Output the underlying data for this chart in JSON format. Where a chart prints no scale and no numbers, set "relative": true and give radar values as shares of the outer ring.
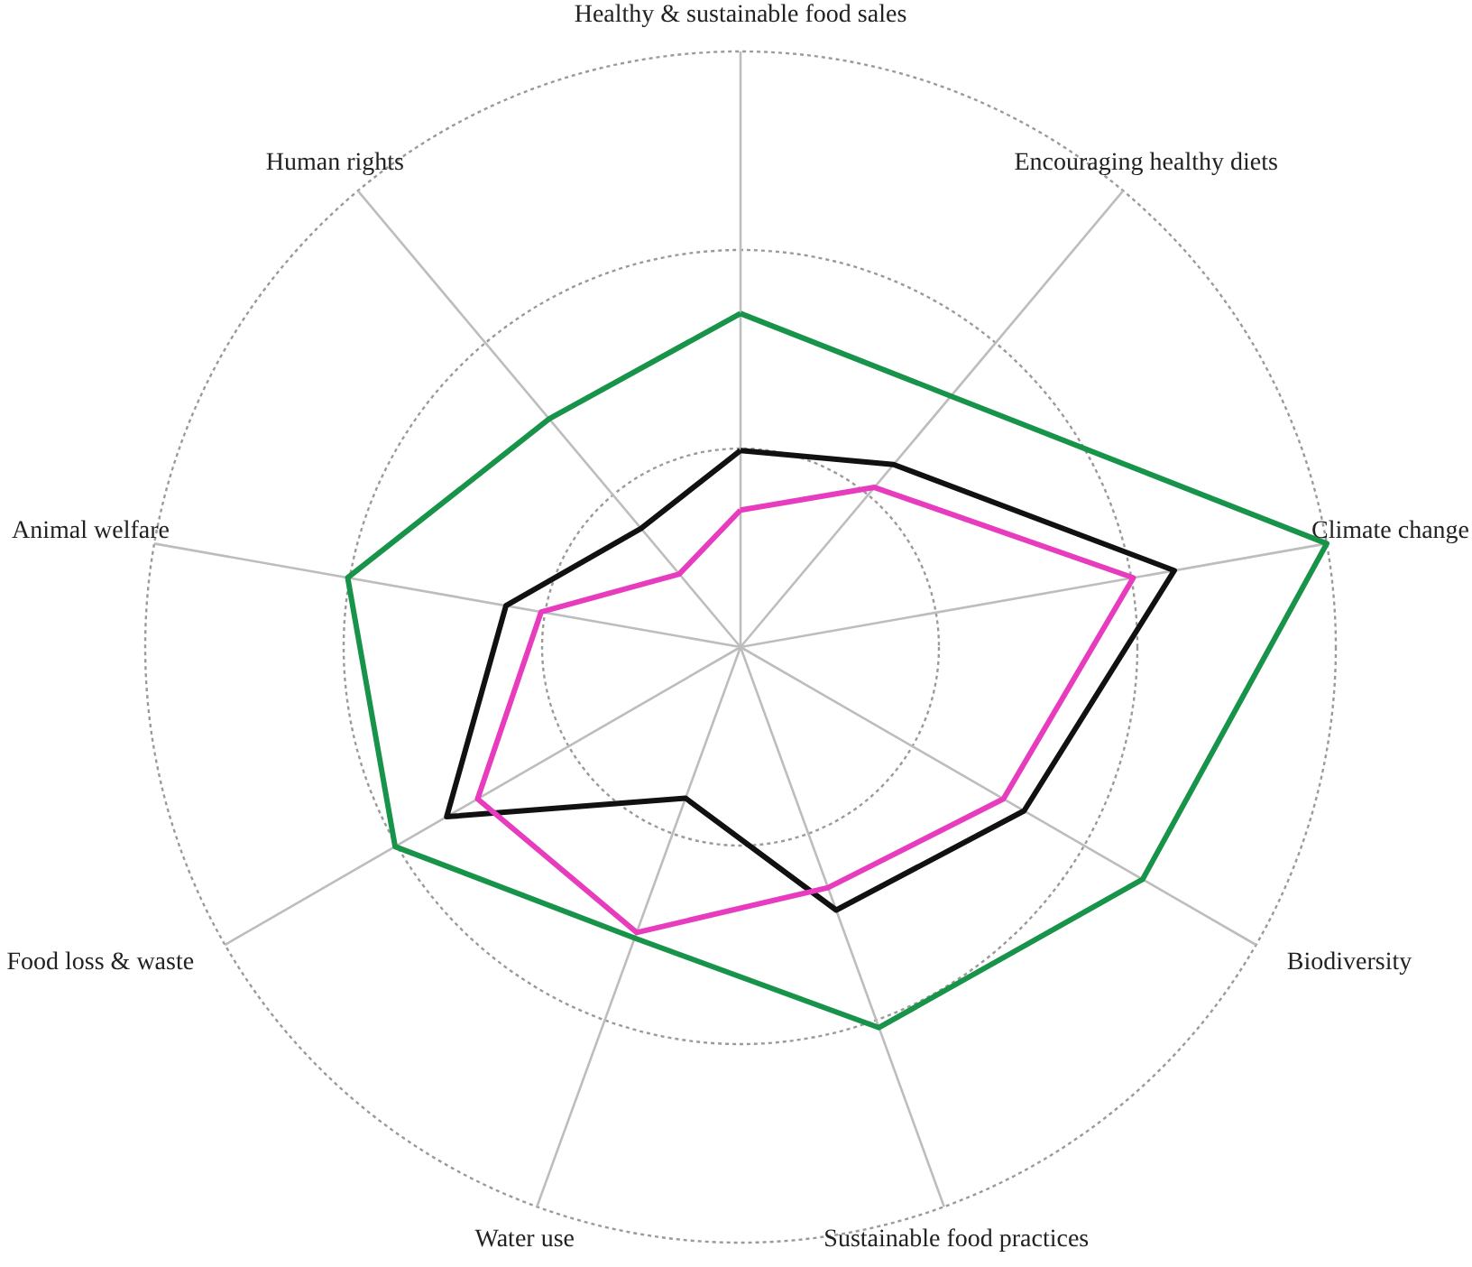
{
  "chart_data": {
    "type": "radar",
    "relative": true,
    "grid": true,
    "categories": [
      "Healthy & sustainable food sales",
      "Encouraging healthy diets",
      "Climate change",
      "Biodiversity",
      "Sustainable food practices",
      "Water use",
      "Food loss & waste",
      "Animal welfare",
      "Human rights"
    ],
    "series": [
      {
        "color": "#17934a",
        "values": [
          0.56,
          0.55,
          1.0,
          0.78,
          0.68,
          0.52,
          0.67,
          0.67,
          0.5
        ]
      },
      {
        "color": "#111111",
        "values": [
          0.33,
          0.4,
          0.74,
          0.55,
          0.47,
          0.27,
          0.57,
          0.4,
          0.26
        ]
      },
      {
        "color": "#e83cbf",
        "values": [
          0.23,
          0.35,
          0.67,
          0.51,
          0.43,
          0.51,
          0.51,
          0.34,
          0.16
        ]
      }
    ]
  }
}
